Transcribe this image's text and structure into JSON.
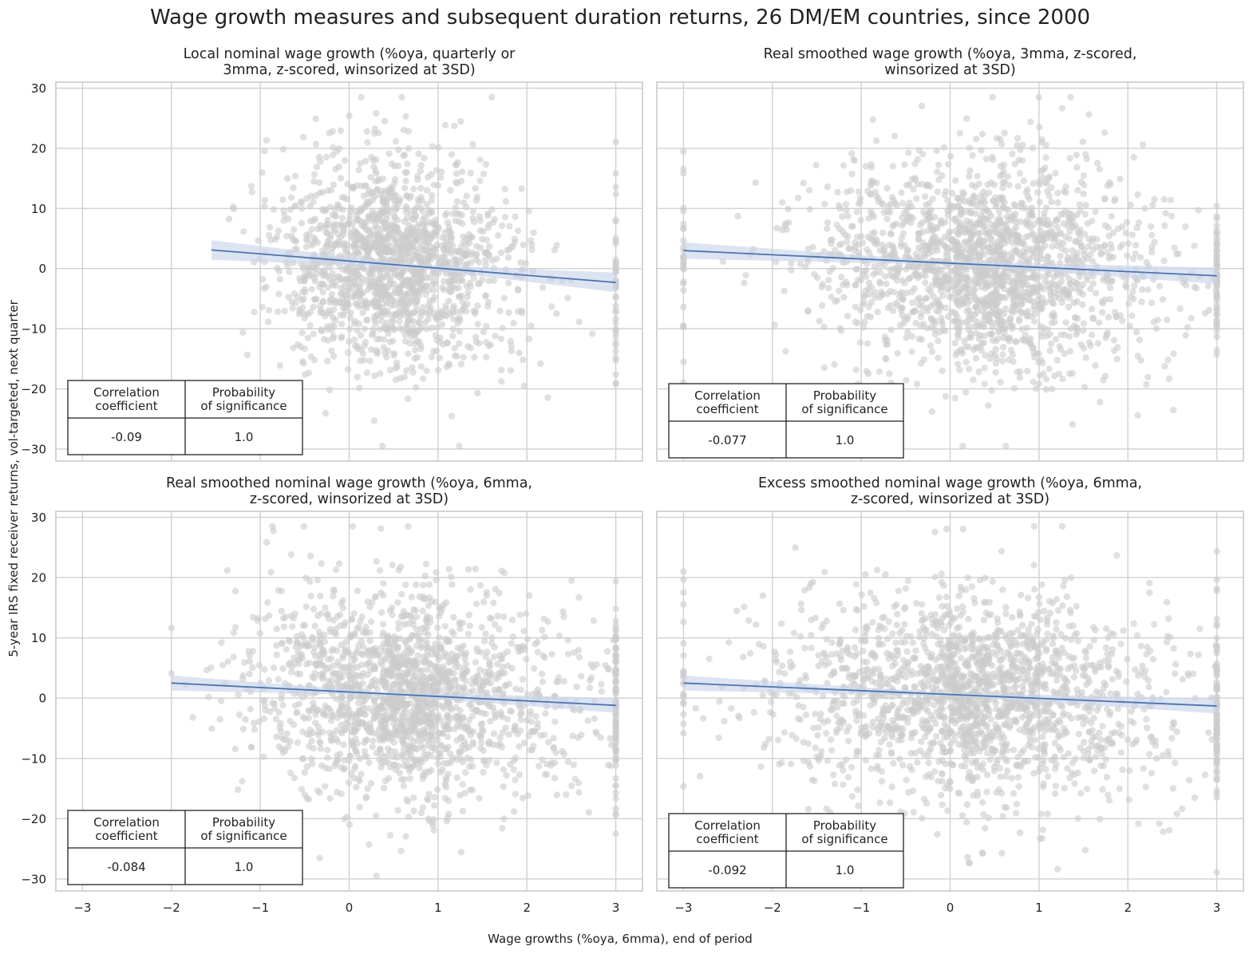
{
  "figure": {
    "title": "Wage growth measures and subsequent duration returns, 26 DM/EM countries, since 2000",
    "ylabel": "5-year IRS fixed receiver returns, vol-targeted, next quarter",
    "xlabel": "Wage growths (%oya, 6mma), end of period"
  },
  "colors": {
    "scatter": "#cccccc",
    "line": "#4c72b0",
    "band": "#c9d6ea",
    "grid": "#d0d0d0",
    "frame": "#cfcfcf"
  },
  "table_headers": {
    "corr": [
      "Correlation",
      "coefficient"
    ],
    "prob": [
      "Probability",
      "of significance"
    ]
  },
  "chart_data": [
    {
      "type": "scatter",
      "title": [
        "Local nominal wage growth (%oya, quarterly or",
        "3mma, z-scored, winsorized at 3SD)"
      ],
      "xlim": [
        -3.3,
        3.3
      ],
      "ylim": [
        -32,
        31
      ],
      "x_ticks": [
        -3,
        -2,
        -1,
        0,
        1,
        2,
        3
      ],
      "y_ticks": [
        -30,
        -20,
        -10,
        0,
        10,
        20,
        30
      ],
      "regression": {
        "x": [
          -1.55,
          3.0
        ],
        "y": [
          3.1,
          -2.3
        ],
        "band": 1.3
      },
      "scatter_params": {
        "n": 1700,
        "x_center": 0.25,
        "x_spread": 0.55,
        "x_min": -1.55,
        "x_max": 3.0,
        "y_spread": 8.0,
        "seed": 11
      },
      "corr": "-0.09",
      "prob": "1.0"
    },
    {
      "type": "scatter",
      "title": [
        "Real smoothed wage growth (%oya, 3mma, z-scored,",
        "winsorized at 3SD)"
      ],
      "xlim": [
        -3.3,
        3.3
      ],
      "ylim": [
        -32,
        31
      ],
      "x_ticks": [
        -3,
        -2,
        -1,
        0,
        1,
        2,
        3
      ],
      "y_ticks": [
        -30,
        -20,
        -10,
        0,
        10,
        20,
        30
      ],
      "regression": {
        "x": [
          -3.0,
          3.0
        ],
        "y": [
          3.0,
          -1.2
        ],
        "band": 1.1
      },
      "scatter_params": {
        "n": 2000,
        "x_center": 0.05,
        "x_spread": 0.85,
        "x_min": -3.0,
        "x_max": 3.0,
        "y_spread": 8.0,
        "seed": 23
      },
      "corr": "-0.077",
      "prob": "1.0"
    },
    {
      "type": "scatter",
      "title": [
        "Real smoothed nominal wage growth (%oya, 6mma,",
        "z-scored, winsorized at 3SD)"
      ],
      "xlim": [
        -3.3,
        3.3
      ],
      "ylim": [
        -32,
        31
      ],
      "x_ticks": [
        -3,
        -2,
        -1,
        0,
        1,
        2,
        3
      ],
      "y_ticks": [
        -30,
        -20,
        -10,
        0,
        10,
        20,
        30
      ],
      "regression": {
        "x": [
          -2.0,
          3.0
        ],
        "y": [
          2.5,
          -1.2
        ],
        "band": 1.0
      },
      "scatter_params": {
        "n": 1900,
        "x_center": 0.35,
        "x_spread": 0.75,
        "x_min": -2.0,
        "x_max": 3.0,
        "y_spread": 8.0,
        "seed": 37
      },
      "corr": "-0.084",
      "prob": "1.0"
    },
    {
      "type": "scatter",
      "title": [
        "Excess smoothed nominal wage growth (%oya, 6mma,",
        "z-scored, winsorized at 3SD)"
      ],
      "xlim": [
        -3.3,
        3.3
      ],
      "ylim": [
        -32,
        31
      ],
      "x_ticks": [
        -3,
        -2,
        -1,
        0,
        1,
        2,
        3
      ],
      "y_ticks": [
        -30,
        -20,
        -10,
        0,
        10,
        20,
        30
      ],
      "regression": {
        "x": [
          -3.0,
          3.0
        ],
        "y": [
          2.5,
          -1.3
        ],
        "band": 1.0
      },
      "scatter_params": {
        "n": 2000,
        "x_center": -0.1,
        "x_spread": 0.95,
        "x_min": -3.0,
        "x_max": 3.0,
        "y_spread": 8.0,
        "seed": 53
      },
      "corr": "-0.092",
      "prob": "1.0"
    }
  ]
}
